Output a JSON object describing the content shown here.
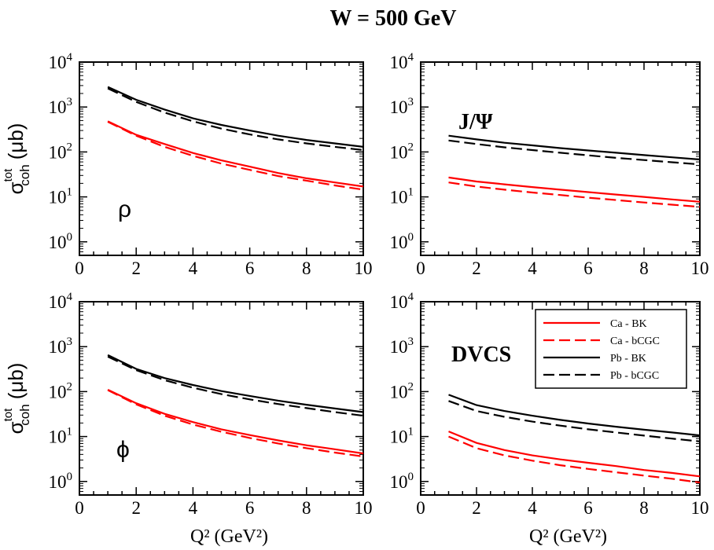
{
  "title": "W = 500 GeV",
  "chart_data": [
    {
      "type": "line",
      "panel": "top-left",
      "annotation": "ρ",
      "ylabel_main": "σ",
      "ylabel_sup": "tot",
      "ylabel_sub": "coh",
      "ylabel_unit": "(μb)",
      "xlabel": "",
      "xlim": [
        0,
        10
      ],
      "ylim": [
        0.5,
        10000
      ],
      "yscale": "log",
      "series": [
        {
          "name": "Ca - BK",
          "color": "#ff0000",
          "dash": "solid",
          "x": [
            1,
            2,
            3,
            4,
            5,
            6,
            7,
            8,
            9,
            10
          ],
          "y": [
            480,
            240,
            150,
            95,
            65,
            47,
            34,
            26,
            21,
            17
          ]
        },
        {
          "name": "Ca - bCGC",
          "color": "#ff0000",
          "dash": "dashed",
          "x": [
            1,
            2,
            3,
            4,
            5,
            6,
            7,
            8,
            9,
            10
          ],
          "y": [
            470,
            230,
            130,
            82,
            55,
            40,
            29,
            23,
            18,
            14.5
          ]
        },
        {
          "name": "Pb - BK",
          "color": "#000000",
          "dash": "solid",
          "x": [
            1,
            2,
            3,
            4,
            5,
            6,
            7,
            8,
            9,
            10
          ],
          "y": [
            2800,
            1450,
            880,
            560,
            400,
            300,
            230,
            185,
            155,
            130
          ]
        },
        {
          "name": "Pb - bCGC",
          "color": "#000000",
          "dash": "dashed",
          "x": [
            1,
            2,
            3,
            4,
            5,
            6,
            7,
            8,
            9,
            10
          ],
          "y": [
            2600,
            1300,
            750,
            480,
            330,
            245,
            190,
            155,
            130,
            110
          ]
        }
      ]
    },
    {
      "type": "line",
      "panel": "top-right",
      "annotation": "J/Ψ",
      "ylabel_main": "",
      "ylabel_sup": "",
      "ylabel_sub": "",
      "ylabel_unit": "",
      "xlabel": "",
      "xlim": [
        0,
        10
      ],
      "ylim": [
        0.5,
        10000
      ],
      "yscale": "log",
      "series": [
        {
          "name": "Ca - BK",
          "color": "#ff0000",
          "dash": "solid",
          "x": [
            1,
            2,
            3,
            4,
            5,
            6,
            7,
            8,
            9,
            10
          ],
          "y": [
            27,
            22,
            19,
            16.5,
            14.5,
            12.8,
            11.3,
            10,
            8.8,
            7.8
          ]
        },
        {
          "name": "Ca - bCGC",
          "color": "#ff0000",
          "dash": "dashed",
          "x": [
            1,
            2,
            3,
            4,
            5,
            6,
            7,
            8,
            9,
            10
          ],
          "y": [
            21,
            17,
            14.5,
            12.5,
            11,
            9.6,
            8.5,
            7.5,
            6.7,
            6
          ]
        },
        {
          "name": "Pb - BK",
          "color": "#000000",
          "dash": "solid",
          "x": [
            1,
            2,
            3,
            4,
            5,
            6,
            7,
            8,
            9,
            10
          ],
          "y": [
            230,
            190,
            160,
            140,
            122,
            108,
            96,
            85,
            76,
            68
          ]
        },
        {
          "name": "Pb - bCGC",
          "color": "#000000",
          "dash": "dashed",
          "x": [
            1,
            2,
            3,
            4,
            5,
            6,
            7,
            8,
            9,
            10
          ],
          "y": [
            180,
            150,
            127,
            110,
            96,
            84,
            74,
            66,
            59,
            53
          ]
        }
      ]
    },
    {
      "type": "line",
      "panel": "bottom-left",
      "annotation": "ϕ",
      "ylabel_main": "σ",
      "ylabel_sup": "tot",
      "ylabel_sub": "coh",
      "ylabel_unit": "(μb)",
      "xlabel": "Q² (GeV²)",
      "xlim": [
        0,
        10
      ],
      "ylim": [
        0.5,
        10000
      ],
      "yscale": "log",
      "series": [
        {
          "name": "Ca - BK",
          "color": "#ff0000",
          "dash": "solid",
          "x": [
            1,
            2,
            3,
            4,
            5,
            6,
            7,
            8,
            9,
            10
          ],
          "y": [
            110,
            55,
            32,
            21,
            14.5,
            10.8,
            8.2,
            6.4,
            5.2,
            4.2
          ]
        },
        {
          "name": "Ca - bCGC",
          "color": "#ff0000",
          "dash": "dashed",
          "x": [
            1,
            2,
            3,
            4,
            5,
            6,
            7,
            8,
            9,
            10
          ],
          "y": [
            108,
            52,
            29,
            18.5,
            12.8,
            9.3,
            7,
            5.5,
            4.4,
            3.6
          ]
        },
        {
          "name": "Pb - BK",
          "color": "#000000",
          "dash": "solid",
          "x": [
            1,
            2,
            3,
            4,
            5,
            6,
            7,
            8,
            9,
            10
          ],
          "y": [
            650,
            320,
            200,
            140,
            103,
            80,
            63,
            51,
            42,
            35
          ]
        },
        {
          "name": "Pb - bCGC",
          "color": "#000000",
          "dash": "dashed",
          "x": [
            1,
            2,
            3,
            4,
            5,
            6,
            7,
            8,
            9,
            10
          ],
          "y": [
            600,
            300,
            180,
            122,
            88,
            67,
            53,
            43,
            35,
            29
          ]
        }
      ]
    },
    {
      "type": "line",
      "panel": "bottom-right",
      "annotation": "DVCS",
      "ylabel_main": "",
      "ylabel_sup": "",
      "ylabel_sub": "",
      "ylabel_unit": "",
      "xlabel": "Q² (GeV²)",
      "xlim": [
        0,
        10
      ],
      "ylim": [
        0.5,
        10000
      ],
      "yscale": "log",
      "legend": "top-right",
      "series": [
        {
          "name": "Ca - BK",
          "color": "#ff0000",
          "dash": "solid",
          "x": [
            1,
            2,
            3,
            4,
            5,
            6,
            7,
            8,
            9,
            10
          ],
          "y": [
            13,
            7.2,
            5,
            3.8,
            3.1,
            2.6,
            2.2,
            1.8,
            1.55,
            1.3
          ]
        },
        {
          "name": "Ca - bCGC",
          "color": "#ff0000",
          "dash": "dashed",
          "x": [
            1,
            2,
            3,
            4,
            5,
            6,
            7,
            8,
            9,
            10
          ],
          "y": [
            10,
            5.5,
            3.8,
            2.9,
            2.3,
            1.9,
            1.6,
            1.35,
            1.15,
            0.95
          ]
        },
        {
          "name": "Pb - BK",
          "color": "#000000",
          "dash": "solid",
          "x": [
            1,
            2,
            3,
            4,
            5,
            6,
            7,
            8,
            9,
            10
          ],
          "y": [
            85,
            50,
            37,
            29,
            23.5,
            19.5,
            16.5,
            14.2,
            12.3,
            10.6
          ]
        },
        {
          "name": "Pb - bCGC",
          "color": "#000000",
          "dash": "dashed",
          "x": [
            1,
            2,
            3,
            4,
            5,
            6,
            7,
            8,
            9,
            10
          ],
          "y": [
            62,
            37,
            27.5,
            21.5,
            17.5,
            14.5,
            12.3,
            10.5,
            9,
            7.8
          ]
        }
      ]
    }
  ],
  "xticks": [
    "0",
    "2",
    "4",
    "6",
    "8",
    "10"
  ],
  "yticks": [
    {
      "base": "10",
      "exp": "0"
    },
    {
      "base": "10",
      "exp": "1"
    },
    {
      "base": "10",
      "exp": "2"
    },
    {
      "base": "10",
      "exp": "3"
    },
    {
      "base": "10",
      "exp": "4"
    }
  ]
}
